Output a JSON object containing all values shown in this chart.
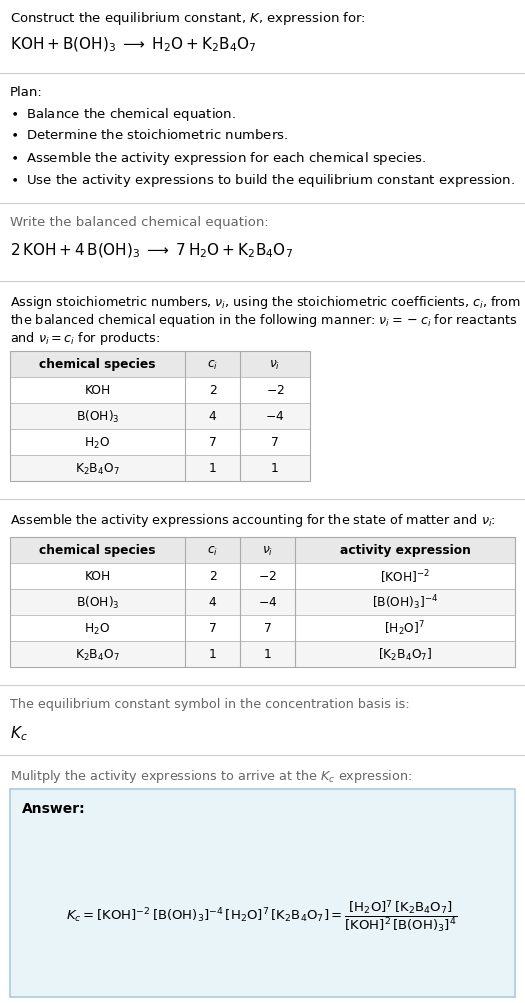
{
  "title_line1": "Construct the equilibrium constant, $K$, expression for:",
  "title_line2_plain": "KOH + B(OH)_3 -> H_2O + K_2B_4O_7",
  "plan_header": "Plan:",
  "balanced_header": "Write the balanced chemical equation:",
  "stoich_header_line1": "Assign stoichiometric numbers, $\\nu_i$, using the stoichiometric coefficients, $c_i$, from",
  "stoich_header_line2": "the balanced chemical equation in the following manner: $\\nu_i = -c_i$ for reactants",
  "stoich_header_line3": "and $\\nu_i = c_i$ for products:",
  "activity_header": "Assemble the activity expressions accounting for the state of matter and $\\nu_i$:",
  "kc_text": "The equilibrium constant symbol in the concentration basis is:",
  "multiply_text": "Mulitply the activity expressions to arrive at the $K_c$ expression:",
  "answer_label": "Answer:",
  "bg_color": "#ffffff",
  "text_color": "#000000",
  "table_header_bg": "#e8e8e8",
  "table_border_color": "#aaaaaa",
  "answer_box_bg": "#e8f4f8",
  "answer_box_border": "#aaccdd",
  "separator_color": "#cccccc",
  "gray_text": "#666666",
  "row_alt_bg": "#f5f5f5"
}
